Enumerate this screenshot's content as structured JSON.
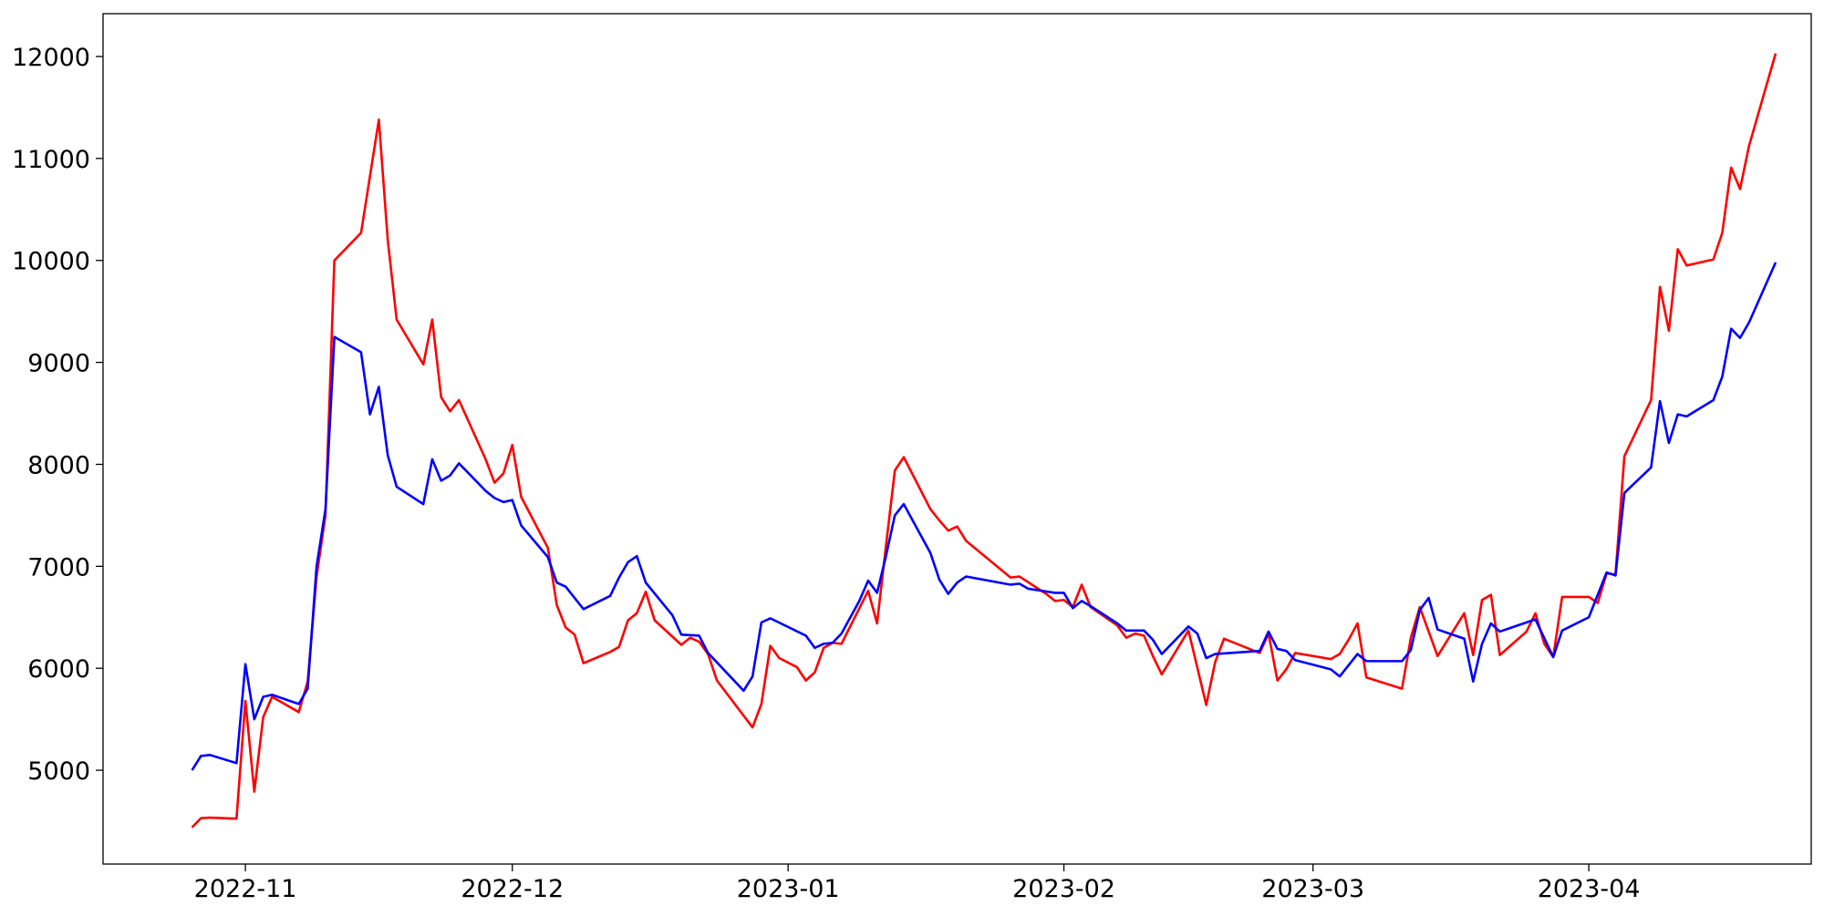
{
  "chart_data": {
    "type": "line",
    "title": "",
    "xlabel": "",
    "ylabel": "",
    "xlim": [
      "2022-10-16",
      "2023-04-26"
    ],
    "ylim": [
      4080,
      12420
    ],
    "grid": false,
    "x_ticks": [
      "2022-11-01",
      "2022-12-01",
      "2023-01-01",
      "2023-02-01",
      "2023-03-01",
      "2023-04-01"
    ],
    "x_tick_labels": [
      "2022-11",
      "2022-12",
      "2023-01",
      "2023-02",
      "2023-03",
      "2023-04"
    ],
    "y_ticks": [
      5000,
      6000,
      7000,
      8000,
      9000,
      10000,
      11000,
      12000
    ],
    "y_tick_labels": [
      "5000",
      "6000",
      "7000",
      "8000",
      "9000",
      "10000",
      "11000",
      "12000"
    ],
    "series": [
      {
        "color": "#ff0000",
        "points": [
          [
            "2022-10-26",
            4440
          ],
          [
            "2022-10-27",
            4530
          ],
          [
            "2022-10-28",
            4535
          ],
          [
            "2022-10-31",
            4525
          ],
          [
            "2022-11-01",
            5680
          ],
          [
            "2022-11-02",
            4790
          ],
          [
            "2022-11-03",
            5520
          ],
          [
            "2022-11-04",
            5720
          ],
          [
            "2022-11-07",
            5570
          ],
          [
            "2022-11-08",
            5870
          ],
          [
            "2022-11-09",
            6900
          ],
          [
            "2022-11-10",
            7500
          ],
          [
            "2022-11-11",
            10000
          ],
          [
            "2022-11-14",
            10270
          ],
          [
            "2022-11-16",
            11380
          ],
          [
            "2022-11-17",
            10200
          ],
          [
            "2022-11-18",
            9420
          ],
          [
            "2022-11-21",
            8980
          ],
          [
            "2022-11-22",
            9420
          ],
          [
            "2022-11-23",
            8660
          ],
          [
            "2022-11-24",
            8520
          ],
          [
            "2022-11-25",
            8630
          ],
          [
            "2022-11-28",
            8050
          ],
          [
            "2022-11-29",
            7820
          ],
          [
            "2022-11-30",
            7910
          ],
          [
            "2022-12-01",
            8190
          ],
          [
            "2022-12-02",
            7680
          ],
          [
            "2022-12-05",
            7180
          ],
          [
            "2022-12-06",
            6620
          ],
          [
            "2022-12-07",
            6400
          ],
          [
            "2022-12-08",
            6330
          ],
          [
            "2022-12-09",
            6050
          ],
          [
            "2022-12-12",
            6160
          ],
          [
            "2022-12-13",
            6210
          ],
          [
            "2022-12-14",
            6470
          ],
          [
            "2022-12-15",
            6540
          ],
          [
            "2022-12-16",
            6750
          ],
          [
            "2022-12-17",
            6470
          ],
          [
            "2022-12-20",
            6230
          ],
          [
            "2022-12-21",
            6300
          ],
          [
            "2022-12-22",
            6260
          ],
          [
            "2022-12-23",
            6140
          ],
          [
            "2022-12-24",
            5880
          ],
          [
            "2022-12-28",
            5420
          ],
          [
            "2022-12-29",
            5650
          ],
          [
            "2022-12-30",
            6220
          ],
          [
            "2022-12-31",
            6100
          ],
          [
            "2023-01-02",
            6010
          ],
          [
            "2023-01-03",
            5880
          ],
          [
            "2023-01-04",
            5960
          ],
          [
            "2023-01-05",
            6200
          ],
          [
            "2023-01-06",
            6250
          ],
          [
            "2023-01-07",
            6240
          ],
          [
            "2023-01-10",
            6760
          ],
          [
            "2023-01-11",
            6440
          ],
          [
            "2023-01-12",
            7200
          ],
          [
            "2023-01-13",
            7940
          ],
          [
            "2023-01-14",
            8070
          ],
          [
            "2023-01-17",
            7560
          ],
          [
            "2023-01-18",
            7450
          ],
          [
            "2023-01-19",
            7350
          ],
          [
            "2023-01-20",
            7390
          ],
          [
            "2023-01-21",
            7250
          ],
          [
            "2023-01-26",
            6890
          ],
          [
            "2023-01-27",
            6900
          ],
          [
            "2023-01-30",
            6730
          ],
          [
            "2023-01-31",
            6660
          ],
          [
            "2023-02-01",
            6670
          ],
          [
            "2023-02-02",
            6600
          ],
          [
            "2023-02-03",
            6820
          ],
          [
            "2023-02-04",
            6600
          ],
          [
            "2023-02-07",
            6420
          ],
          [
            "2023-02-08",
            6300
          ],
          [
            "2023-02-09",
            6340
          ],
          [
            "2023-02-10",
            6320
          ],
          [
            "2023-02-11",
            6120
          ],
          [
            "2023-02-12",
            5940
          ],
          [
            "2023-02-15",
            6370
          ],
          [
            "2023-02-17",
            5640
          ],
          [
            "2023-02-18",
            6060
          ],
          [
            "2023-02-19",
            6290
          ],
          [
            "2023-02-23",
            6150
          ],
          [
            "2023-02-24",
            6340
          ],
          [
            "2023-02-25",
            5880
          ],
          [
            "2023-02-26",
            5990
          ],
          [
            "2023-02-27",
            6150
          ],
          [
            "2023-03-03",
            6090
          ],
          [
            "2023-03-04",
            6140
          ],
          [
            "2023-03-05",
            6280
          ],
          [
            "2023-03-06",
            6440
          ],
          [
            "2023-03-07",
            5910
          ],
          [
            "2023-03-11",
            5800
          ],
          [
            "2023-03-12",
            6300
          ],
          [
            "2023-03-13",
            6600
          ],
          [
            "2023-03-15",
            6120
          ],
          [
            "2023-03-18",
            6540
          ],
          [
            "2023-03-19",
            6130
          ],
          [
            "2023-03-20",
            6670
          ],
          [
            "2023-03-21",
            6720
          ],
          [
            "2023-03-22",
            6130
          ],
          [
            "2023-03-25",
            6360
          ],
          [
            "2023-03-26",
            6540
          ],
          [
            "2023-03-27",
            6240
          ],
          [
            "2023-03-28",
            6110
          ],
          [
            "2023-03-29",
            6700
          ],
          [
            "2023-04-01",
            6700
          ],
          [
            "2023-04-02",
            6640
          ],
          [
            "2023-04-03",
            6930
          ],
          [
            "2023-04-04",
            6920
          ],
          [
            "2023-04-05",
            8080
          ],
          [
            "2023-04-08",
            8630
          ],
          [
            "2023-04-09",
            9740
          ],
          [
            "2023-04-10",
            9310
          ],
          [
            "2023-04-11",
            10110
          ],
          [
            "2023-04-12",
            9950
          ],
          [
            "2023-04-15",
            10010
          ],
          [
            "2023-04-16",
            10270
          ],
          [
            "2023-04-17",
            10910
          ],
          [
            "2023-04-18",
            10700
          ],
          [
            "2023-04-19",
            11120
          ],
          [
            "2023-04-22",
            12030
          ]
        ]
      },
      {
        "color": "#0000ff",
        "points": [
          [
            "2022-10-26",
            5000
          ],
          [
            "2022-10-27",
            5140
          ],
          [
            "2022-10-28",
            5150
          ],
          [
            "2022-10-31",
            5070
          ],
          [
            "2022-11-01",
            6040
          ],
          [
            "2022-11-02",
            5500
          ],
          [
            "2022-11-03",
            5720
          ],
          [
            "2022-11-04",
            5740
          ],
          [
            "2022-11-07",
            5650
          ],
          [
            "2022-11-08",
            5800
          ],
          [
            "2022-11-09",
            7000
          ],
          [
            "2022-11-10",
            7560
          ],
          [
            "2022-11-11",
            9250
          ],
          [
            "2022-11-14",
            9100
          ],
          [
            "2022-11-15",
            8490
          ],
          [
            "2022-11-16",
            8760
          ],
          [
            "2022-11-17",
            8090
          ],
          [
            "2022-11-18",
            7780
          ],
          [
            "2022-11-21",
            7610
          ],
          [
            "2022-11-22",
            8050
          ],
          [
            "2022-11-23",
            7840
          ],
          [
            "2022-11-24",
            7890
          ],
          [
            "2022-11-25",
            8010
          ],
          [
            "2022-11-28",
            7740
          ],
          [
            "2022-11-29",
            7670
          ],
          [
            "2022-11-30",
            7630
          ],
          [
            "2022-12-01",
            7650
          ],
          [
            "2022-12-02",
            7400
          ],
          [
            "2022-12-05",
            7090
          ],
          [
            "2022-12-06",
            6840
          ],
          [
            "2022-12-07",
            6800
          ],
          [
            "2022-12-09",
            6580
          ],
          [
            "2022-12-12",
            6710
          ],
          [
            "2022-12-13",
            6890
          ],
          [
            "2022-12-14",
            7040
          ],
          [
            "2022-12-15",
            7100
          ],
          [
            "2022-12-16",
            6840
          ],
          [
            "2022-12-19",
            6520
          ],
          [
            "2022-12-20",
            6330
          ],
          [
            "2022-12-22",
            6320
          ],
          [
            "2022-12-23",
            6150
          ],
          [
            "2022-12-27",
            5780
          ],
          [
            "2022-12-28",
            5920
          ],
          [
            "2022-12-29",
            6450
          ],
          [
            "2022-12-30",
            6490
          ],
          [
            "2023-01-03",
            6320
          ],
          [
            "2023-01-04",
            6200
          ],
          [
            "2023-01-05",
            6240
          ],
          [
            "2023-01-06",
            6250
          ],
          [
            "2023-01-07",
            6340
          ],
          [
            "2023-01-09",
            6660
          ],
          [
            "2023-01-10",
            6860
          ],
          [
            "2023-01-11",
            6740
          ],
          [
            "2023-01-12",
            7100
          ],
          [
            "2023-01-13",
            7500
          ],
          [
            "2023-01-14",
            7610
          ],
          [
            "2023-01-17",
            7130
          ],
          [
            "2023-01-18",
            6870
          ],
          [
            "2023-01-19",
            6730
          ],
          [
            "2023-01-20",
            6840
          ],
          [
            "2023-01-21",
            6900
          ],
          [
            "2023-01-26",
            6820
          ],
          [
            "2023-01-27",
            6830
          ],
          [
            "2023-01-28",
            6780
          ],
          [
            "2023-01-31",
            6740
          ],
          [
            "2023-02-01",
            6740
          ],
          [
            "2023-02-02",
            6590
          ],
          [
            "2023-02-03",
            6660
          ],
          [
            "2023-02-04",
            6610
          ],
          [
            "2023-02-07",
            6440
          ],
          [
            "2023-02-08",
            6370
          ],
          [
            "2023-02-10",
            6370
          ],
          [
            "2023-02-11",
            6280
          ],
          [
            "2023-02-12",
            6140
          ],
          [
            "2023-02-15",
            6410
          ],
          [
            "2023-02-16",
            6340
          ],
          [
            "2023-02-17",
            6100
          ],
          [
            "2023-02-18",
            6140
          ],
          [
            "2023-02-23",
            6170
          ],
          [
            "2023-02-24",
            6360
          ],
          [
            "2023-02-25",
            6190
          ],
          [
            "2023-02-26",
            6170
          ],
          [
            "2023-02-27",
            6080
          ],
          [
            "2023-03-03",
            5990
          ],
          [
            "2023-03-04",
            5920
          ],
          [
            "2023-03-06",
            6140
          ],
          [
            "2023-03-07",
            6070
          ],
          [
            "2023-03-11",
            6070
          ],
          [
            "2023-03-12",
            6180
          ],
          [
            "2023-03-13",
            6570
          ],
          [
            "2023-03-14",
            6690
          ],
          [
            "2023-03-15",
            6380
          ],
          [
            "2023-03-18",
            6290
          ],
          [
            "2023-03-19",
            5870
          ],
          [
            "2023-03-20",
            6240
          ],
          [
            "2023-03-21",
            6440
          ],
          [
            "2023-03-22",
            6360
          ],
          [
            "2023-03-26",
            6480
          ],
          [
            "2023-03-28",
            6110
          ],
          [
            "2023-03-29",
            6370
          ],
          [
            "2023-04-01",
            6500
          ],
          [
            "2023-04-03",
            6940
          ],
          [
            "2023-04-04",
            6910
          ],
          [
            "2023-04-05",
            7720
          ],
          [
            "2023-04-08",
            7970
          ],
          [
            "2023-04-09",
            8620
          ],
          [
            "2023-04-10",
            8210
          ],
          [
            "2023-04-11",
            8490
          ],
          [
            "2023-04-12",
            8470
          ],
          [
            "2023-04-15",
            8630
          ],
          [
            "2023-04-16",
            8860
          ],
          [
            "2023-04-17",
            9330
          ],
          [
            "2023-04-18",
            9240
          ],
          [
            "2023-04-19",
            9390
          ],
          [
            "2023-04-22",
            9980
          ]
        ]
      }
    ]
  }
}
